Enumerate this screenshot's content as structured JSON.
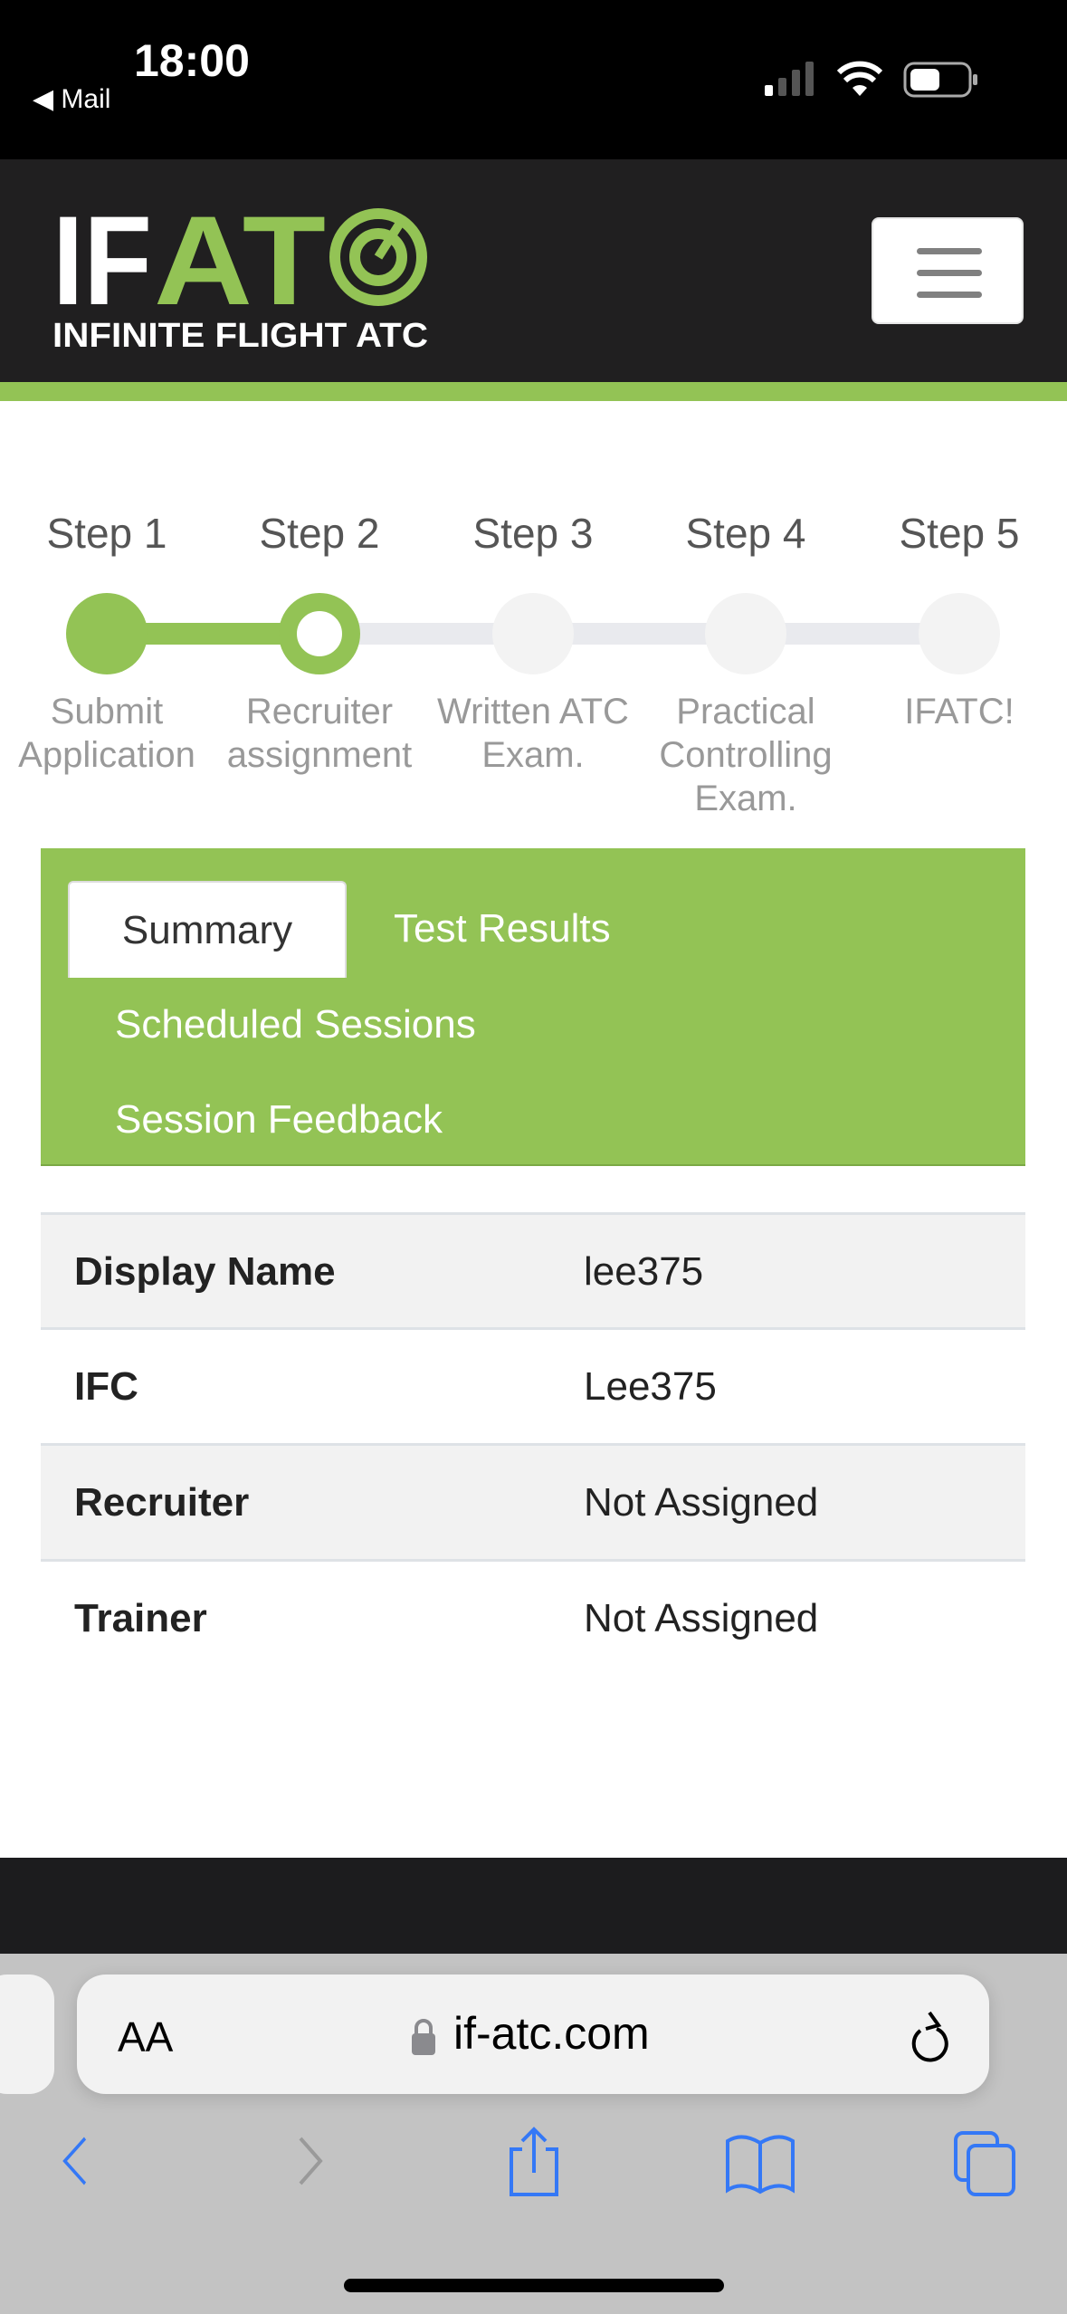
{
  "status_bar": {
    "time": "18:00",
    "back_app": "◀ Mail"
  },
  "header": {
    "logo_text": "IFATC",
    "logo_subtitle": "INFINITE FLIGHT ATC",
    "menu_icon": "hamburger-icon"
  },
  "colors": {
    "brand_green": "#93c355",
    "header_dark": "#201f20",
    "ios_blue": "#3478f6"
  },
  "steps": [
    {
      "title": "Step 1",
      "label": "Submit Application",
      "state": "complete"
    },
    {
      "title": "Step 2",
      "label": "Recruiter assignment",
      "state": "current"
    },
    {
      "title": "Step 3",
      "label": "Written ATC Exam.",
      "state": "pending"
    },
    {
      "title": "Step 4",
      "label": "Practical Controlling Exam.",
      "state": "pending"
    },
    {
      "title": "Step 5",
      "label": "IFATC!",
      "state": "pending"
    }
  ],
  "tabs": [
    {
      "label": "Summary",
      "active": true
    },
    {
      "label": "Test Results"
    },
    {
      "label": "Scheduled Sessions"
    },
    {
      "label": "Session Feedback"
    }
  ],
  "summary": [
    {
      "label": "Display Name",
      "value": "lee375"
    },
    {
      "label": "IFC",
      "value": "Lee375"
    },
    {
      "label": "Recruiter",
      "value": "Not Assigned"
    },
    {
      "label": "Trainer",
      "value": "Not Assigned"
    }
  ],
  "browser": {
    "text_size": "AA",
    "url": "if-atc.com"
  }
}
